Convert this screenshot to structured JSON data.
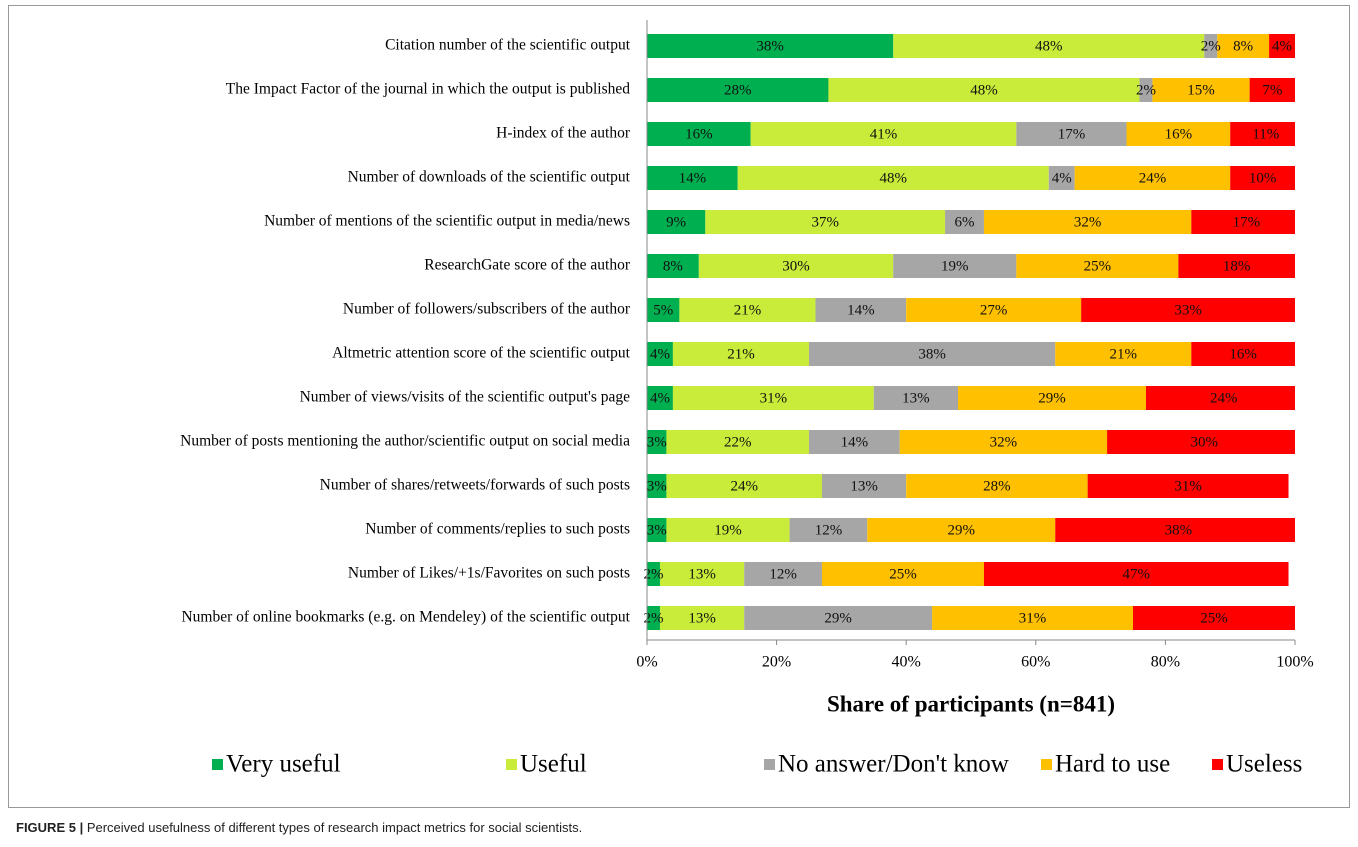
{
  "chart_data": {
    "type": "stacked-bar-horizontal",
    "categories": [
      "Citation number of the scientific output",
      "The Impact Factor of the journal in which the output is published",
      "H-index of the author",
      "Number of downloads of the scientific output",
      "Number of mentions of the scientific output in media/news",
      "ResearchGate score of the author",
      "Number of followers/subscribers of the author",
      "Altmetric attention score of the scientific output",
      "Number of views/visits of the scientific output's page",
      "Number of posts mentioning the author/scientific output on social media",
      "Number of shares/retweets/forwards of such posts",
      "Number of comments/replies to such posts",
      "Number of Likes/+1s/Favorites on such posts",
      "Number of online bookmarks (e.g. on Mendeley) of the scientific output"
    ],
    "series": [
      {
        "name": "Very useful",
        "color": "#00b050",
        "values": [
          38,
          28,
          16,
          14,
          9,
          8,
          5,
          4,
          4,
          3,
          3,
          3,
          2,
          2
        ],
        "value_labels": [
          "38%",
          "28%",
          "16%",
          "14%",
          "9%",
          "8%",
          "5%",
          "4%",
          "4%",
          "3%",
          "3%",
          "3%",
          "2%",
          "2%"
        ]
      },
      {
        "name": "Useful",
        "color": "#c9ec3a",
        "values": [
          48,
          48,
          41,
          48,
          37,
          30,
          21,
          21,
          31,
          22,
          24,
          19,
          13,
          13
        ],
        "value_labels": [
          "48%",
          "48%",
          "41%",
          "48%",
          "37%",
          "30%",
          "21%",
          "21%",
          "31%",
          "22%",
          "24%",
          "19%",
          "13%",
          "13%"
        ]
      },
      {
        "name": "No answer/Don't know",
        "color": "#a6a6a6",
        "values": [
          2,
          2,
          17,
          4,
          6,
          19,
          14,
          38,
          13,
          14,
          13,
          12,
          12,
          29
        ],
        "value_labels": [
          "2%",
          "2%",
          "17%",
          "4%",
          "6%",
          "19%",
          "14%",
          "38%",
          "13%",
          "14%",
          "13%",
          "12%",
          "12%",
          "29%"
        ]
      },
      {
        "name": "Hard to use",
        "color": "#ffc000",
        "values": [
          8,
          15,
          16,
          24,
          32,
          25,
          27,
          21,
          29,
          32,
          28,
          29,
          25,
          31
        ],
        "value_labels": [
          "8%",
          "15%",
          "16%",
          "24%",
          "32%",
          "25%",
          "27%",
          "21%",
          "29%",
          "32%",
          "28%",
          "29%",
          "25%",
          "31%"
        ]
      },
      {
        "name": "Useless",
        "color": "#ff0000",
        "values": [
          4,
          7,
          11,
          10,
          17,
          18,
          33,
          16,
          24,
          30,
          31,
          38,
          47,
          25
        ],
        "value_labels": [
          "4%",
          "7%",
          "11%",
          "10%",
          "17%",
          "18%",
          "33%",
          "16%",
          "24%",
          "30%",
          "31%",
          "38%",
          "47%",
          "25%"
        ]
      }
    ],
    "xlabel": "Share of participants  (n=841)",
    "xlim": [
      0,
      100
    ],
    "xticks": [
      {
        "value": 0,
        "label": "0%"
      },
      {
        "value": 20,
        "label": "20%"
      },
      {
        "value": 40,
        "label": "40%"
      },
      {
        "value": 60,
        "label": "60%"
      },
      {
        "value": 80,
        "label": "80%"
      },
      {
        "value": 100,
        "label": "100%"
      }
    ],
    "grid": false,
    "legend": "bottom"
  },
  "caption": {
    "label": "FIGURE 5 |",
    "text": " Perceived usefulness of different types of research impact metrics for social scientists."
  }
}
